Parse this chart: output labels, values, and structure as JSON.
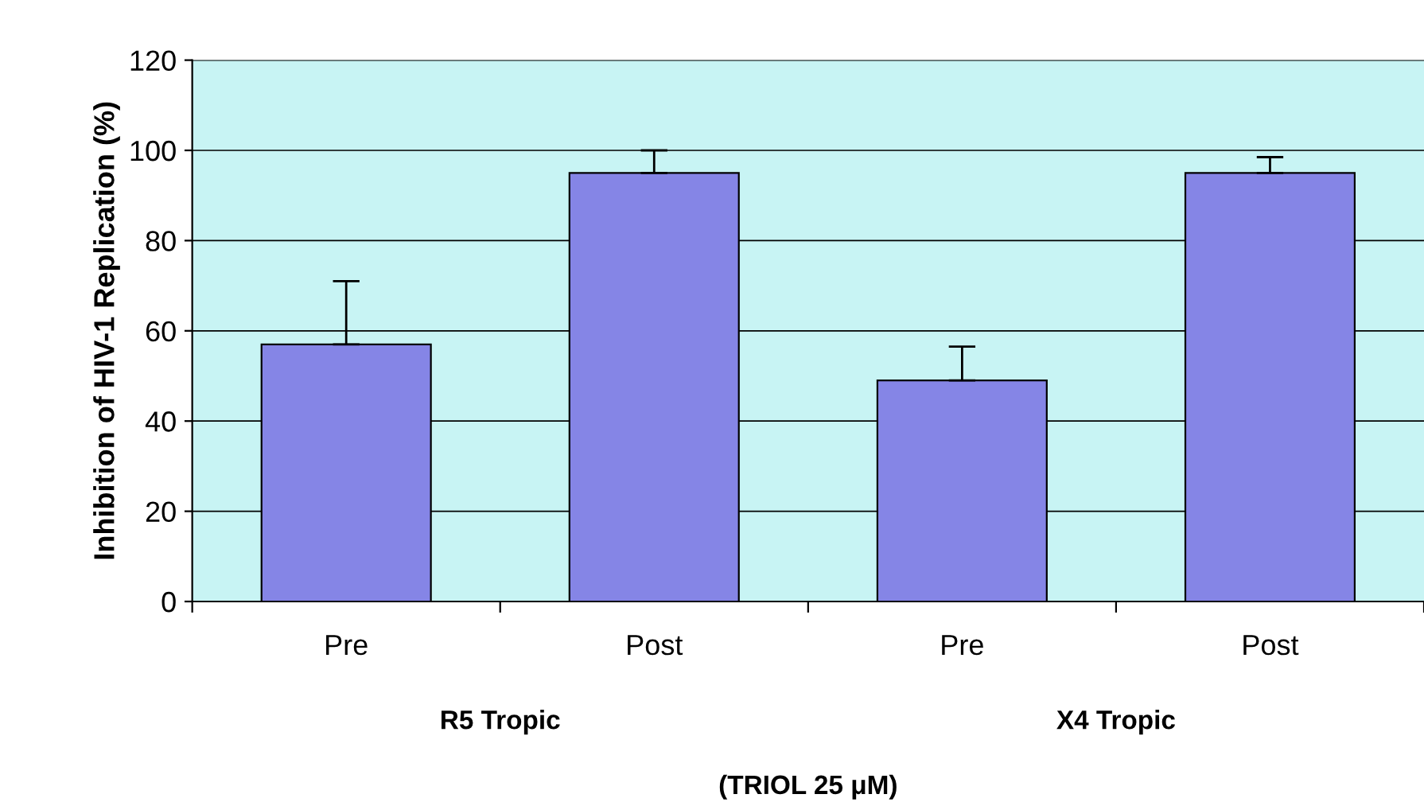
{
  "chart_data": {
    "type": "bar",
    "ylabel": "Inhibition of HIV-1 Replication (%)",
    "xlabel": "(TRIOL 25 μM)",
    "categories": [
      "Pre",
      "Post",
      "Pre",
      "Post"
    ],
    "values": [
      57,
      95,
      49,
      95
    ],
    "errors": [
      [
        57,
        71
      ],
      [
        95,
        100
      ],
      [
        49,
        56.5
      ],
      [
        95,
        98.5
      ]
    ],
    "color": "#8585e6",
    "ylim": [
      0,
      120
    ],
    "yticks": [
      0,
      20,
      40,
      60,
      80,
      100,
      120
    ],
    "grid": "y",
    "annotations": [
      "R5 Tropic",
      "X4 Tropic"
    ]
  }
}
